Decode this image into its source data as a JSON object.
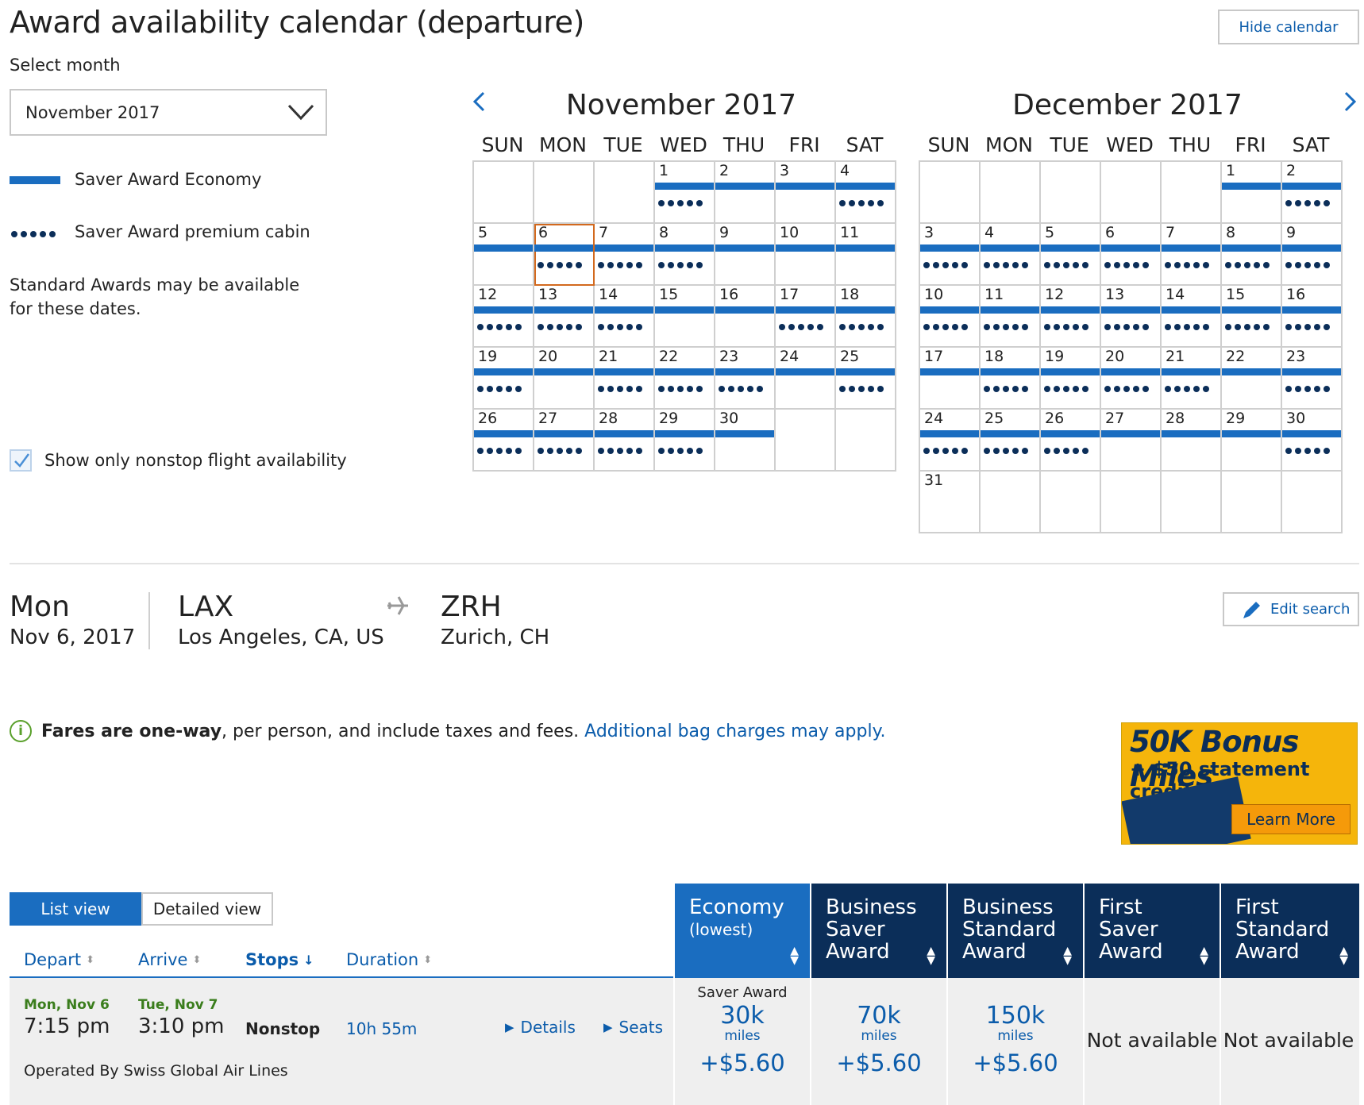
{
  "page": {
    "title": "Award availability calendar (departure)",
    "hide_calendar": "Hide calendar",
    "select_month_label": "Select month",
    "selected_month": "November 2017"
  },
  "legend": {
    "saver_economy": "Saver Award Economy",
    "saver_premium": "Saver Award premium cabin",
    "standard_note": "Standard Awards may be available for these dates."
  },
  "nonstop_checkbox": {
    "label": "Show only nonstop flight availability",
    "checked": true
  },
  "days_of_week": [
    "SUN",
    "MON",
    "TUE",
    "WED",
    "THU",
    "FRI",
    "SAT"
  ],
  "calendars": [
    {
      "title": "November 2017",
      "start_weekday": 3,
      "days": 30,
      "rows": 5,
      "selected": 6,
      "economy": [
        1,
        2,
        3,
        4,
        5,
        6,
        7,
        8,
        9,
        10,
        11,
        12,
        13,
        14,
        15,
        16,
        17,
        18,
        19,
        20,
        21,
        22,
        23,
        24,
        25,
        26,
        27,
        28,
        29,
        30
      ],
      "premium": [
        1,
        4,
        6,
        7,
        8,
        12,
        13,
        14,
        17,
        18,
        19,
        21,
        22,
        23,
        25,
        26,
        27,
        28,
        29
      ]
    },
    {
      "title": "December 2017",
      "start_weekday": 5,
      "days": 31,
      "rows": 6,
      "selected": null,
      "economy": [
        1,
        2,
        3,
        4,
        5,
        6,
        7,
        8,
        9,
        10,
        11,
        12,
        13,
        14,
        15,
        16,
        17,
        18,
        19,
        20,
        21,
        22,
        23,
        24,
        25,
        26,
        27,
        28,
        29,
        30
      ],
      "premium": [
        2,
        3,
        4,
        5,
        6,
        7,
        8,
        9,
        10,
        11,
        12,
        13,
        14,
        15,
        16,
        18,
        19,
        20,
        21,
        23,
        24,
        25,
        26,
        30
      ]
    }
  ],
  "trip": {
    "day": "Mon",
    "date": "Nov 6, 2017",
    "origin_code": "LAX",
    "origin_name": "Los Angeles, CA, US",
    "dest_code": "ZRH",
    "dest_name": "Zurich, CH",
    "edit_search": "Edit search"
  },
  "info": {
    "bold": "Fares are one-way",
    "text": ", per person, and include taxes and fees.",
    "link": "Additional bag charges may apply."
  },
  "promo": {
    "headline": "50K Bonus Miles",
    "subline": "+ $50 statement credit",
    "cta": "Learn More"
  },
  "views": {
    "list": "List view",
    "detailed": "Detailed view"
  },
  "sort_headers": {
    "depart": "Depart",
    "arrive": "Arrive",
    "stops": "Stops",
    "duration": "Duration"
  },
  "fare_columns": [
    {
      "title": "Economy",
      "sub": "(lowest)"
    },
    {
      "title": "Business Saver Award",
      "sub": ""
    },
    {
      "title": "Business Standard Award",
      "sub": ""
    },
    {
      "title": "First Saver Award",
      "sub": ""
    },
    {
      "title": "First Standard Award",
      "sub": ""
    }
  ],
  "flight": {
    "depart_date": "Mon, Nov 6",
    "depart_time": "7:15 pm",
    "arrive_date": "Tue, Nov 7",
    "arrive_time": "3:10 pm",
    "stops": "Nonstop",
    "duration": "10h 55m",
    "details": "Details",
    "seats": "Seats",
    "operated_by": "Operated By Swiss Global Air Lines",
    "fares": [
      {
        "label": "Saver Award",
        "miles": "30k",
        "unit": "miles",
        "tax": "+$5.60"
      },
      {
        "label": "",
        "miles": "70k",
        "unit": "miles",
        "tax": "+$5.60"
      },
      {
        "label": "",
        "miles": "150k",
        "unit": "miles",
        "tax": "+$5.60"
      },
      {
        "na": "Not available"
      },
      {
        "na": "Not available"
      }
    ]
  },
  "colors": {
    "accent": "#1a6dc0",
    "navy": "#0b2e59",
    "selected_outline": "#d2691e",
    "promo": "#f5b50b"
  }
}
